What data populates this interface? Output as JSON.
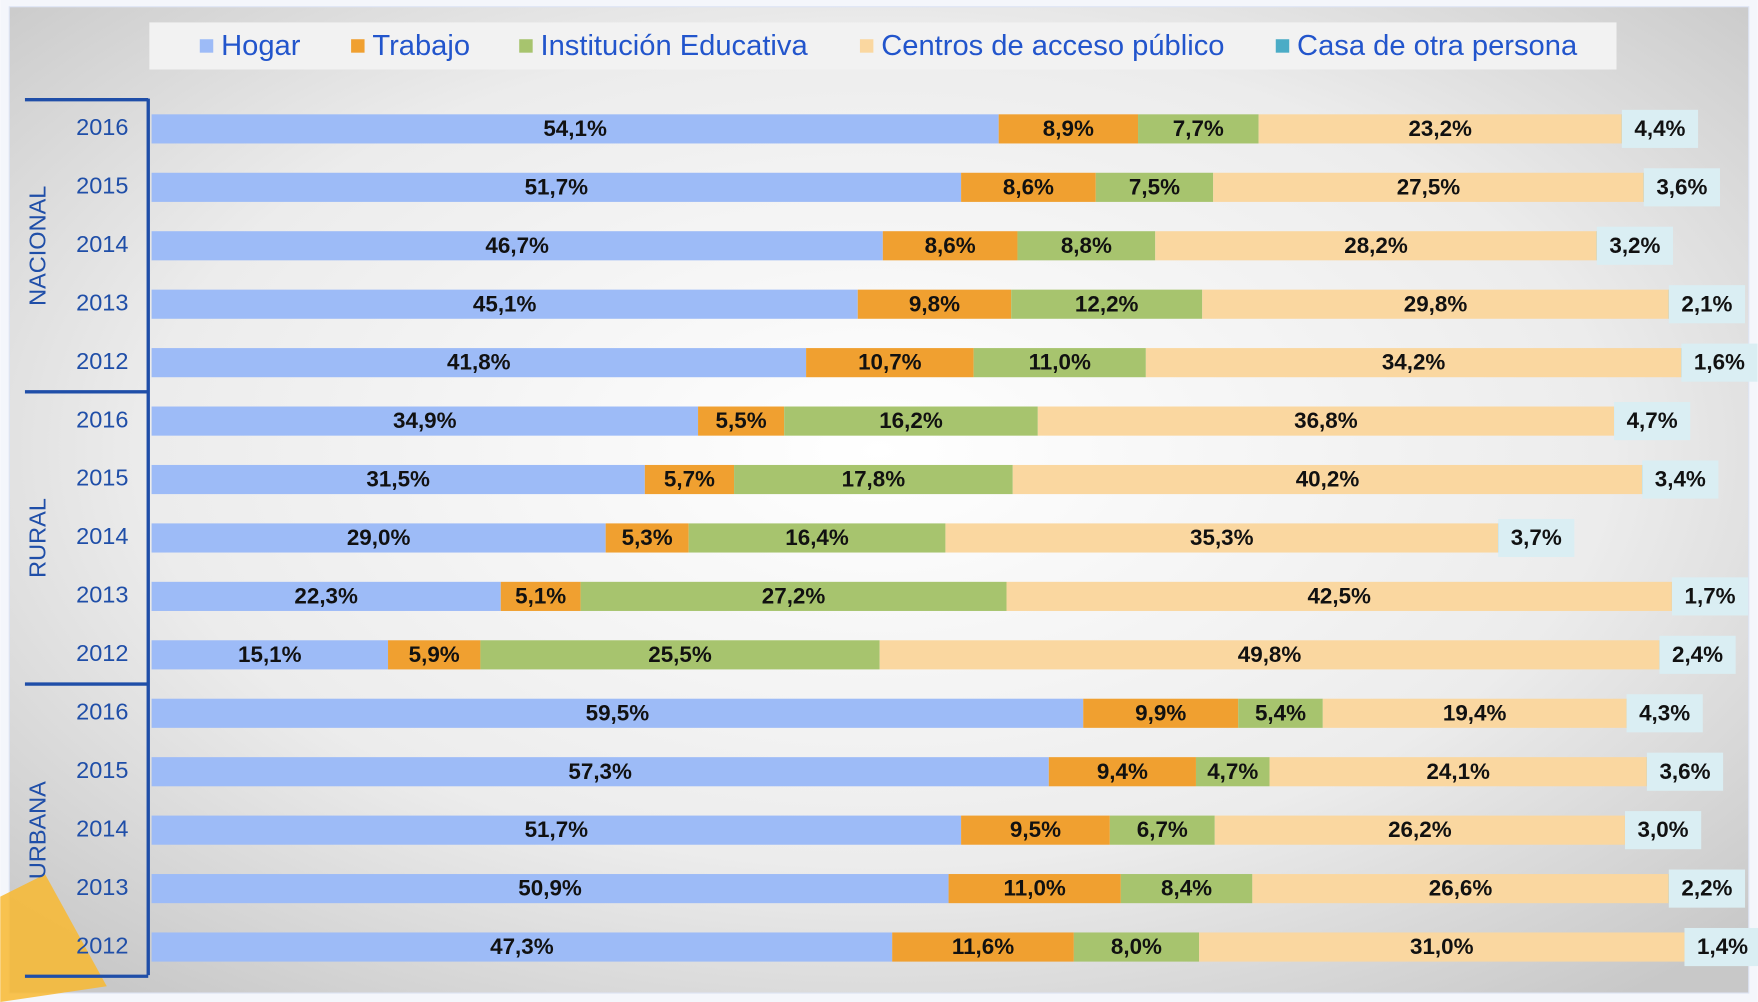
{
  "chart_data": {
    "type": "stacked-bar-horizontal",
    "xlim": [
      0,
      100
    ],
    "groups": [
      {
        "name": "NACIONAL",
        "categories": [
          "2016",
          "2015",
          "2014",
          "2013",
          "2012"
        ]
      },
      {
        "name": "RURAL",
        "categories": [
          "2016",
          "2015",
          "2014",
          "2013",
          "2012"
        ]
      },
      {
        "name": "URBANA",
        "categories": [
          "2016",
          "2015",
          "2014",
          "2013",
          "2012"
        ]
      }
    ],
    "legend_position": "top",
    "series": [
      {
        "name": "Hogar",
        "color": "#9dbbf7",
        "values": [
          54.1,
          51.7,
          46.7,
          45.1,
          41.8,
          34.9,
          31.5,
          29.0,
          22.3,
          15.1,
          59.5,
          57.3,
          51.7,
          50.9,
          47.3
        ],
        "value_labels": [
          "54,1%",
          "51,7%",
          "46,7%",
          "45,1%",
          "41,8%",
          "34,9%",
          "31,5%",
          "29,0%",
          "22,3%",
          "15,1%",
          "59,5%",
          "57,3%",
          "51,7%",
          "50,9%",
          "47,3%"
        ]
      },
      {
        "name": "Trabajo",
        "color": "#f0a030",
        "values": [
          8.9,
          8.6,
          8.6,
          9.8,
          10.7,
          5.5,
          5.7,
          5.3,
          5.1,
          5.9,
          9.9,
          9.4,
          9.5,
          11.0,
          11.6
        ],
        "value_labels": [
          "8,9%",
          "8,6%",
          "8,6%",
          "9,8%",
          "10,7%",
          "5,5%",
          "5,7%",
          "5,3%",
          "5,1%",
          "5,9%",
          "9,9%",
          "9,4%",
          "9,5%",
          "11,0%",
          "11,6%"
        ]
      },
      {
        "name": "Institución Educativa",
        "color": "#a7c46e",
        "values": [
          7.7,
          7.5,
          8.8,
          12.2,
          11.0,
          16.2,
          17.8,
          16.4,
          27.2,
          25.5,
          5.4,
          4.7,
          6.7,
          8.4,
          8.0
        ],
        "value_labels": [
          "7,7%",
          "7,5%",
          "8,8%",
          "12,2%",
          "11,0%",
          "16,2%",
          "17,8%",
          "16,4%",
          "27,2%",
          "25,5%",
          "5,4%",
          "4,7%",
          "6,7%",
          "8,4%",
          "8,0%"
        ]
      },
      {
        "name": "Centros de acceso público",
        "color": "#fad7a0",
        "values": [
          23.2,
          27.5,
          28.2,
          29.8,
          34.2,
          36.8,
          40.2,
          35.3,
          42.5,
          49.8,
          19.4,
          24.1,
          26.2,
          26.6,
          31.0
        ],
        "value_labels": [
          "23,2%",
          "27,5%",
          "28,2%",
          "29,8%",
          "34,2%",
          "36,8%",
          "40,2%",
          "35,3%",
          "42,5%",
          "49,8%",
          "19,4%",
          "24,1%",
          "26,2%",
          "26,6%",
          "31,0%"
        ]
      },
      {
        "name": "Casa de otra persona",
        "color": "#4bacc6",
        "values": [
          4.4,
          3.6,
          3.2,
          2.1,
          1.6,
          4.7,
          3.4,
          3.7,
          1.7,
          2.4,
          4.3,
          3.6,
          3.0,
          2.2,
          1.4
        ],
        "value_labels": [
          "4,4%",
          "3,6%",
          "3,2%",
          "2,1%",
          "1,6%",
          "4,7%",
          "3,4%",
          "3,7%",
          "1,7%",
          "2,4%",
          "4,3%",
          "3,6%",
          "3,0%",
          "2,2%",
          "1,4%"
        ]
      }
    ]
  }
}
